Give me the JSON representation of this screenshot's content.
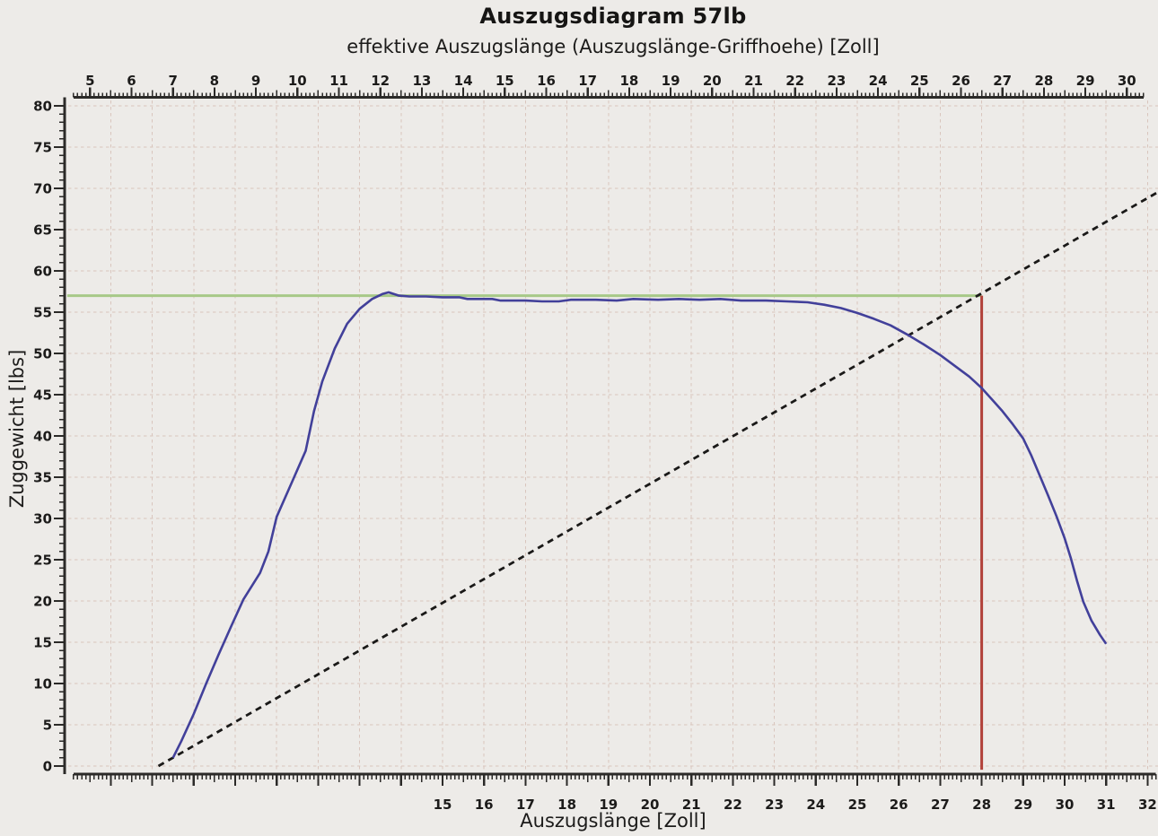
{
  "chart_data": {
    "type": "line",
    "title": "Auszugsdiagram 57lb",
    "axes": {
      "top": {
        "label": "effektive Auszugslänge (Auszugslänge-Griffhoehe) [Zoll]",
        "tick_labels": [
          5,
          6,
          7,
          8,
          9,
          10,
          11,
          12,
          13,
          14,
          15,
          16,
          17,
          18,
          19,
          20,
          21,
          22,
          23,
          24,
          25,
          26,
          27,
          28,
          29,
          30
        ],
        "range": [
          4.6,
          30.4
        ],
        "minor_step": 0.1,
        "offset_from_bottom_axis": -1.5,
        "unit": "Zoll"
      },
      "bottom": {
        "label": "Auszugslänge [Zoll]",
        "tick_labels": [
          15,
          16,
          17,
          18,
          19,
          20,
          21,
          22,
          23,
          24,
          25,
          26,
          27,
          28,
          29,
          30,
          31,
          32
        ],
        "range": [
          6.1,
          32.2
        ],
        "minor_step": 0.1,
        "unit": "Zoll"
      },
      "left": {
        "label": "Zuggewicht [lbs]",
        "tick_labels": [
          0,
          5,
          10,
          15,
          20,
          25,
          30,
          35,
          40,
          45,
          50,
          55,
          60,
          65,
          70,
          75,
          80
        ],
        "range": [
          0,
          80
        ],
        "minor_step": 1,
        "major_step": 5,
        "unit": "lbs"
      }
    },
    "grid": {
      "vertical_step_inch": 1,
      "horizontal_step_lbs": 5,
      "style": "dashed"
    },
    "peak_weight_lbs": 57,
    "marked_draw_length_inch": 28,
    "series": [
      {
        "id": "peak-weight-line",
        "color": "#a7c988",
        "width": 3,
        "dash": "",
        "points": [
          [
            5.95,
            57
          ],
          [
            28,
            57
          ]
        ]
      },
      {
        "id": "draw-length-marker-line",
        "color": "#b2423a",
        "width": 3,
        "dash": "",
        "points": [
          [
            28,
            -0.45
          ],
          [
            28,
            57
          ]
        ]
      },
      {
        "id": "linear-reference-line",
        "color": "#1a1918",
        "width": 2.8,
        "dash": "7 5.5",
        "points": [
          [
            8.15,
            0
          ],
          [
            32.3,
            69.7
          ]
        ]
      },
      {
        "id": "force-draw-curve",
        "color": "#42409a",
        "width": 2.6,
        "dash": "",
        "points": [
          [
            8.5,
            1.0
          ],
          [
            8.7,
            3.0
          ],
          [
            9.0,
            6.3
          ],
          [
            9.3,
            10.0
          ],
          [
            9.6,
            13.5
          ],
          [
            9.9,
            16.9
          ],
          [
            10.2,
            20.2
          ],
          [
            10.6,
            23.4
          ],
          [
            10.8,
            26.0
          ],
          [
            11.0,
            30.2
          ],
          [
            11.35,
            34.2
          ],
          [
            11.7,
            38.2
          ],
          [
            11.9,
            43.0
          ],
          [
            12.1,
            46.6
          ],
          [
            12.4,
            50.6
          ],
          [
            12.7,
            53.6
          ],
          [
            13.0,
            55.4
          ],
          [
            13.3,
            56.6
          ],
          [
            13.55,
            57.2
          ],
          [
            13.7,
            57.4
          ],
          [
            13.95,
            57.0
          ],
          [
            14.2,
            56.9
          ],
          [
            14.6,
            56.9
          ],
          [
            15.0,
            56.8
          ],
          [
            15.4,
            56.8
          ],
          [
            15.6,
            56.6
          ],
          [
            16.2,
            56.6
          ],
          [
            16.4,
            56.4
          ],
          [
            17.0,
            56.4
          ],
          [
            17.4,
            56.3
          ],
          [
            17.8,
            56.3
          ],
          [
            18.1,
            56.5
          ],
          [
            18.7,
            56.5
          ],
          [
            19.2,
            56.4
          ],
          [
            19.6,
            56.6
          ],
          [
            20.2,
            56.5
          ],
          [
            20.7,
            56.6
          ],
          [
            21.2,
            56.5
          ],
          [
            21.7,
            56.6
          ],
          [
            22.2,
            56.4
          ],
          [
            22.8,
            56.4
          ],
          [
            23.3,
            56.3
          ],
          [
            23.8,
            56.2
          ],
          [
            24.2,
            55.9
          ],
          [
            24.6,
            55.5
          ],
          [
            25.0,
            54.9
          ],
          [
            25.4,
            54.2
          ],
          [
            25.8,
            53.4
          ],
          [
            26.2,
            52.3
          ],
          [
            26.6,
            51.1
          ],
          [
            27.0,
            49.8
          ],
          [
            27.4,
            48.3
          ],
          [
            27.7,
            47.2
          ],
          [
            28.0,
            45.8
          ],
          [
            28.25,
            44.4
          ],
          [
            28.5,
            43.0
          ],
          [
            28.75,
            41.4
          ],
          [
            29.0,
            39.7
          ],
          [
            29.2,
            37.6
          ],
          [
            29.4,
            35.2
          ],
          [
            29.6,
            32.8
          ],
          [
            29.8,
            30.3
          ],
          [
            30.0,
            27.6
          ],
          [
            30.15,
            25.2
          ],
          [
            30.3,
            22.4
          ],
          [
            30.45,
            19.9
          ],
          [
            30.65,
            17.6
          ],
          [
            30.85,
            15.9
          ],
          [
            31.0,
            14.8
          ]
        ]
      }
    ],
    "colors": {
      "background": "#edebe8",
      "grid": "#d9c5bd",
      "axis": "#2b2a28",
      "text": "#1c1b1a",
      "curve": "#42409a",
      "peak_line": "#a7c988",
      "marker_line": "#b2423a",
      "reference_line": "#1a1918"
    }
  }
}
